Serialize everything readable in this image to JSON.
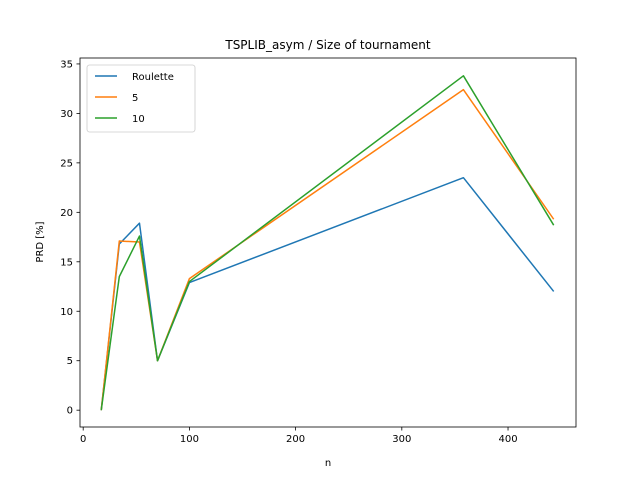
{
  "chart_data": {
    "type": "line",
    "title": "TSPLIB_asym / Size of tournament",
    "xlabel": "n",
    "ylabel": "PRD [%]",
    "xlim": [
      -3,
      464
    ],
    "ylim": [
      -1.7,
      35.6
    ],
    "xticks": [
      0,
      100,
      200,
      300,
      400
    ],
    "yticks": [
      0,
      5,
      10,
      15,
      20,
      25,
      30,
      35
    ],
    "grid": false,
    "legend_position": "upper-left",
    "x": [
      17,
      34,
      53,
      70,
      100,
      358,
      443
    ],
    "series": [
      {
        "name": "Roulette",
        "color": "#1f77b4",
        "values": [
          0,
          16.8,
          18.9,
          5.0,
          12.9,
          23.5,
          12.0
        ]
      },
      {
        "name": "5",
        "color": "#ff7f0e",
        "values": [
          0,
          17.1,
          17.0,
          5.0,
          13.3,
          32.4,
          19.3
        ]
      },
      {
        "name": "10",
        "color": "#2ca02c",
        "values": [
          0,
          13.5,
          17.6,
          5.0,
          13.0,
          33.8,
          18.7
        ]
      }
    ]
  }
}
